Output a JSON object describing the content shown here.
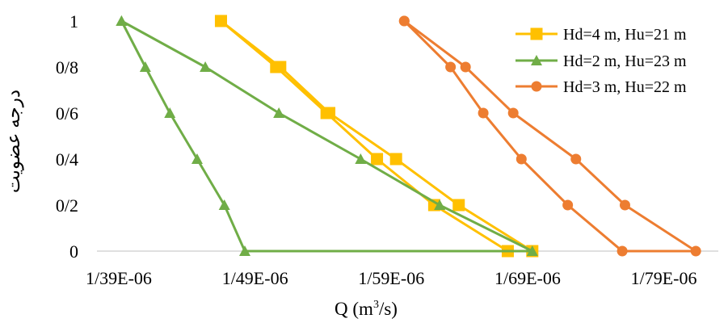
{
  "chart_data": {
    "type": "line",
    "xlabel_main": "Q (m",
    "xlabel_sup": "3",
    "xlabel_tail": "/s)",
    "ylabel": "درجه عضویت",
    "x_ticks": [
      {
        "value": 1.39,
        "label": "1/39E-06"
      },
      {
        "value": 1.49,
        "label": "1/49E-06"
      },
      {
        "value": 1.59,
        "label": "1/59E-06"
      },
      {
        "value": 1.69,
        "label": "1/69E-06"
      },
      {
        "value": 1.79,
        "label": "1/79E-06"
      }
    ],
    "y_ticks": [
      {
        "value": 0,
        "label": "0"
      },
      {
        "value": 0.2,
        "label": "0/2"
      },
      {
        "value": 0.4,
        "label": "0/4"
      },
      {
        "value": 0.6,
        "label": "0/6"
      },
      {
        "value": 0.8,
        "label": "0/8"
      },
      {
        "value": 1,
        "label": "1"
      }
    ],
    "xlim": [
      1.39,
      1.83
    ],
    "ylim": [
      0,
      1
    ],
    "x_scale_note": "E-06",
    "legend_position": "top-right",
    "series": [
      {
        "name": "Hd=4 m, Hu=21 m",
        "color": "#FFC000",
        "marker": "square",
        "points": [
          [
            1.465,
            1.0
          ],
          [
            1.5055,
            0.8
          ],
          [
            1.5425,
            0.6
          ],
          [
            1.5795,
            0.4
          ],
          [
            1.6215,
            0.2
          ],
          [
            1.6755,
            0.0
          ],
          [
            1.6935,
            0.0
          ],
          [
            1.6395,
            0.2
          ],
          [
            1.5935,
            0.4
          ],
          [
            1.5445,
            0.6
          ],
          [
            1.5085,
            0.8
          ],
          [
            1.465,
            1.0
          ]
        ]
      },
      {
        "name": "Hd=2 m, Hu=23 m",
        "color": "#70AD47",
        "marker": "triangle",
        "points": [
          [
            1.392,
            1.0
          ],
          [
            1.4095,
            0.8
          ],
          [
            1.4275,
            0.6
          ],
          [
            1.4475,
            0.4
          ],
          [
            1.4675,
            0.2
          ],
          [
            1.4825,
            0.0
          ],
          [
            1.6935,
            0.0
          ],
          [
            1.6255,
            0.2
          ],
          [
            1.5675,
            0.4
          ],
          [
            1.5075,
            0.6
          ],
          [
            1.4535,
            0.8
          ],
          [
            1.392,
            1.0
          ]
        ]
      },
      {
        "name": "Hd=3 m, Hu=22 m",
        "color": "#ED7D31",
        "marker": "circle",
        "points": [
          [
            1.5995,
            1.0
          ],
          [
            1.6335,
            0.8
          ],
          [
            1.6575,
            0.6
          ],
          [
            1.6855,
            0.4
          ],
          [
            1.7195,
            0.2
          ],
          [
            1.7595,
            0.0
          ],
          [
            1.8135,
            0.0
          ],
          [
            1.7615,
            0.2
          ],
          [
            1.7255,
            0.4
          ],
          [
            1.6795,
            0.6
          ],
          [
            1.6445,
            0.8
          ],
          [
            1.5995,
            1.0
          ]
        ]
      }
    ]
  }
}
